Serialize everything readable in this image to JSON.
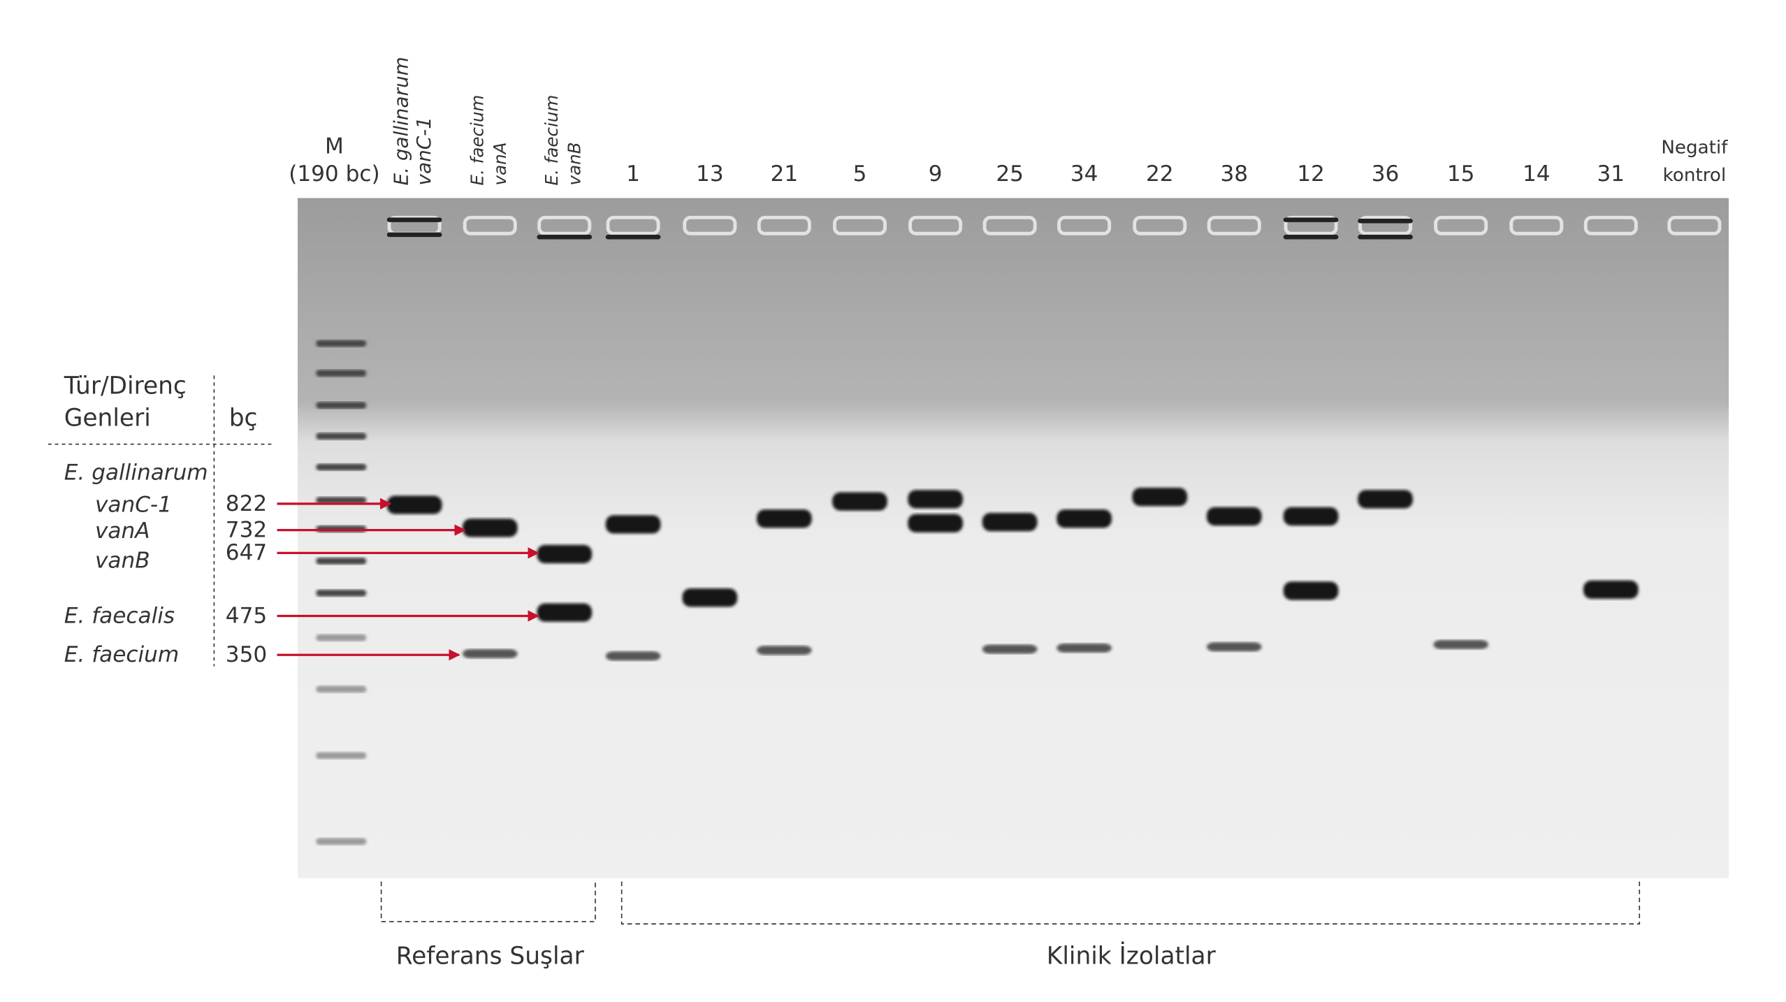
{
  "lanes": [
    {
      "lines": [
        "M",
        "(190 bc)"
      ]
    },
    {
      "lines": [
        "E. gallinarum",
        "vanC-1"
      ]
    },
    {
      "lines": [
        "E. faecium",
        "vanA"
      ]
    },
    {
      "lines": [
        "E. faecium",
        "vanB"
      ]
    },
    {
      "lines": [
        "1"
      ]
    },
    {
      "lines": [
        "13"
      ]
    },
    {
      "lines": [
        "21"
      ]
    },
    {
      "lines": [
        "5"
      ]
    },
    {
      "lines": [
        "9"
      ]
    },
    {
      "lines": [
        "25"
      ]
    },
    {
      "lines": [
        "34"
      ]
    },
    {
      "lines": [
        "22"
      ]
    },
    {
      "lines": [
        "38"
      ]
    },
    {
      "lines": [
        "12"
      ]
    },
    {
      "lines": [
        "36"
      ]
    },
    {
      "lines": [
        "15"
      ]
    },
    {
      "lines": [
        "14"
      ]
    },
    {
      "lines": [
        "31"
      ]
    },
    {
      "lines": [
        "Negatif",
        "kontrol"
      ]
    }
  ],
  "legend": {
    "header": [
      "Tür/Direnç",
      "Genleri"
    ],
    "bp_header": "bç",
    "rows": [
      {
        "name": "E. gallinarum"
      },
      {
        "name": "vanC-1",
        "bp": 822
      },
      {
        "name": "vanA",
        "bp": 732
      },
      {
        "name": "vanB",
        "bp": 647
      },
      {
        "name": "E. faecalis",
        "bp": 475
      },
      {
        "name": "E. faecium",
        "bp": 350
      }
    ]
  },
  "groups": [
    "Referans Suşlar",
    "Klinik İzolatlar"
  ]
}
